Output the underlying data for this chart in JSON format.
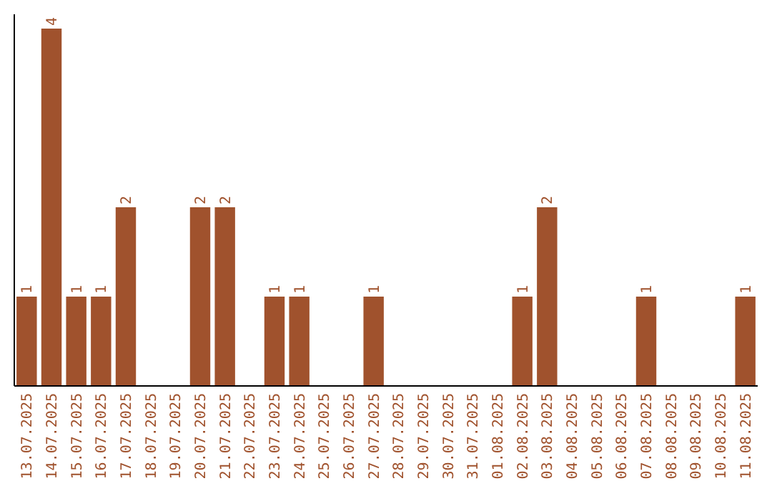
{
  "chart_data": {
    "type": "bar",
    "categories": [
      "13.07.2025",
      "14.07.2025",
      "15.07.2025",
      "16.07.2025",
      "17.07.2025",
      "18.07.2025",
      "19.07.2025",
      "20.07.2025",
      "21.07.2025",
      "22.07.2025",
      "23.07.2025",
      "24.07.2025",
      "25.07.2025",
      "26.07.2025",
      "27.07.2025",
      "28.07.2025",
      "29.07.2025",
      "30.07.2025",
      "31.07.2025",
      "01.08.2025",
      "02.08.2025",
      "03.08.2025",
      "04.08.2025",
      "05.08.2025",
      "06.08.2025",
      "07.08.2025",
      "08.08.2025",
      "09.08.2025",
      "10.08.2025",
      "11.08.2025"
    ],
    "values": [
      1,
      4,
      1,
      1,
      2,
      0,
      0,
      2,
      2,
      0,
      1,
      1,
      0,
      0,
      1,
      0,
      0,
      0,
      0,
      0,
      1,
      2,
      0,
      0,
      0,
      1,
      0,
      0,
      0,
      1
    ],
    "value_labels": [
      "1",
      "4",
      "1",
      "1",
      "2",
      null,
      null,
      "2",
      "2",
      null,
      "1",
      "1",
      null,
      null,
      "1",
      null,
      null,
      null,
      null,
      null,
      "1",
      "2",
      null,
      null,
      null,
      "1",
      null,
      null,
      null,
      "1"
    ],
    "color": "#a0522d"
  }
}
